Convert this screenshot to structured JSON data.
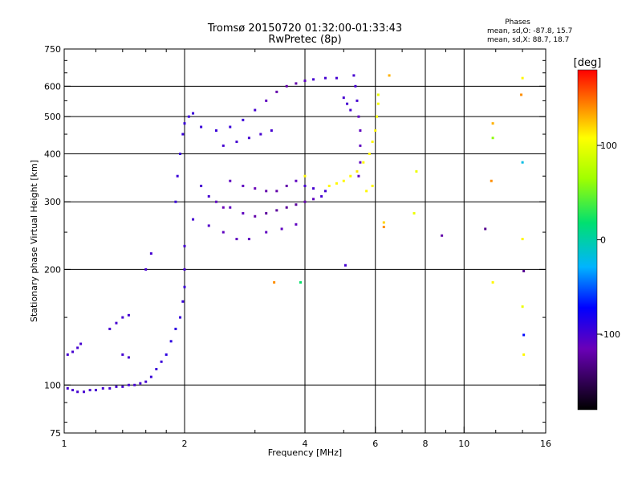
{
  "chart_data": {
    "type": "scatter",
    "title": "Tromsø 20150720 01:32:00-01:33:43",
    "subtitle": "RwPretec (8p)",
    "xlabel": "Frequency [MHz]",
    "ylabel": "Stationary phase Virtual Height [km]",
    "x_scale": "log",
    "y_scale": "log",
    "xlim": [
      1,
      16
    ],
    "ylim": [
      75,
      750
    ],
    "x_ticks": [
      1,
      2,
      4,
      6,
      8,
      10,
      16
    ],
    "y_ticks": [
      75,
      100,
      200,
      300,
      400,
      500,
      600,
      750
    ],
    "grid": true,
    "legend": {
      "title": "Phases",
      "entries": [
        "mean, sd,O:  -87.8, 15.7",
        "mean, sd,X:  88.7, 18.7"
      ]
    },
    "colorbar": {
      "label": "[deg]",
      "range": [
        -180,
        180
      ],
      "ticks": [
        100,
        0,
        -100
      ]
    },
    "series": [
      {
        "values": [
          [
            1.02,
            98,
            -100
          ],
          [
            1.05,
            97,
            -100
          ],
          [
            1.08,
            96,
            -100
          ],
          [
            1.12,
            96,
            -100
          ],
          [
            1.16,
            97,
            -100
          ],
          [
            1.2,
            97,
            -100
          ],
          [
            1.25,
            98,
            -100
          ],
          [
            1.3,
            98,
            -100
          ],
          [
            1.35,
            99,
            -100
          ],
          [
            1.4,
            99,
            -100
          ],
          [
            1.45,
            100,
            -100
          ],
          [
            1.5,
            100,
            -100
          ],
          [
            1.55,
            101,
            -100
          ],
          [
            1.6,
            102,
            -100
          ],
          [
            1.65,
            105,
            -95
          ],
          [
            1.7,
            110,
            -95
          ],
          [
            1.75,
            115,
            -95
          ],
          [
            1.8,
            120,
            -90
          ],
          [
            1.85,
            130,
            -90
          ],
          [
            1.9,
            140,
            -90
          ],
          [
            1.95,
            150,
            -95
          ],
          [
            1.98,
            165,
            -95
          ],
          [
            2.0,
            180,
            -95
          ],
          [
            2.0,
            200,
            -100
          ],
          [
            2.0,
            230,
            -100
          ],
          [
            1.02,
            120,
            -100
          ],
          [
            1.05,
            122,
            -100
          ],
          [
            1.08,
            125,
            -100
          ],
          [
            1.1,
            128,
            -100
          ],
          [
            1.4,
            120,
            -100
          ],
          [
            1.45,
            118,
            -100
          ],
          [
            1.3,
            140,
            -100
          ],
          [
            1.35,
            145,
            -100
          ],
          [
            1.4,
            150,
            -100
          ],
          [
            1.45,
            152,
            -100
          ],
          [
            1.6,
            200,
            -100
          ],
          [
            1.65,
            220,
            -100
          ],
          [
            1.9,
            300,
            -95
          ],
          [
            1.92,
            350,
            -95
          ],
          [
            1.95,
            400,
            -95
          ],
          [
            1.98,
            450,
            -95
          ],
          [
            2.0,
            480,
            -95
          ],
          [
            2.05,
            500,
            -95
          ],
          [
            2.1,
            510,
            -95
          ],
          [
            2.2,
            470,
            -95
          ],
          [
            2.4,
            460,
            -95
          ],
          [
            2.6,
            470,
            -95
          ],
          [
            2.8,
            490,
            -95
          ],
          [
            3.0,
            520,
            -100
          ],
          [
            3.2,
            550,
            -110
          ],
          [
            3.4,
            580,
            -120
          ],
          [
            3.6,
            600,
            -120
          ],
          [
            3.8,
            610,
            -120
          ],
          [
            4.0,
            620,
            -110
          ],
          [
            4.2,
            625,
            -100
          ],
          [
            4.5,
            630,
            -100
          ],
          [
            4.8,
            630,
            -100
          ],
          [
            2.5,
            420,
            -100
          ],
          [
            2.7,
            430,
            -100
          ],
          [
            2.9,
            440,
            -100
          ],
          [
            3.1,
            450,
            -100
          ],
          [
            3.3,
            460,
            -100
          ],
          [
            2.6,
            290,
            -110
          ],
          [
            2.8,
            280,
            -110
          ],
          [
            3.0,
            275,
            -120
          ],
          [
            3.2,
            280,
            -125
          ],
          [
            3.4,
            285,
            -125
          ],
          [
            3.6,
            290,
            -125
          ],
          [
            3.8,
            295,
            -125
          ],
          [
            4.0,
            300,
            -120
          ],
          [
            4.2,
            305,
            -110
          ],
          [
            4.4,
            310,
            -100
          ],
          [
            2.6,
            340,
            -110
          ],
          [
            2.8,
            330,
            -110
          ],
          [
            3.0,
            325,
            -115
          ],
          [
            3.2,
            320,
            -120
          ],
          [
            3.4,
            320,
            -120
          ],
          [
            3.6,
            330,
            -120
          ],
          [
            3.8,
            340,
            -110
          ],
          [
            4.0,
            330,
            -100
          ],
          [
            4.2,
            325,
            -100
          ],
          [
            4.5,
            320,
            -100
          ],
          [
            2.2,
            330,
            -100
          ],
          [
            2.3,
            310,
            -100
          ],
          [
            2.4,
            300,
            -110
          ],
          [
            2.5,
            290,
            -115
          ],
          [
            2.1,
            270,
            -100
          ],
          [
            2.3,
            260,
            -105
          ],
          [
            2.5,
            250,
            -110
          ],
          [
            2.7,
            240,
            -110
          ],
          [
            2.9,
            240,
            -110
          ],
          [
            3.2,
            250,
            -110
          ],
          [
            3.5,
            255,
            -110
          ],
          [
            3.8,
            262,
            -110
          ],
          [
            5.3,
            640,
            -100
          ],
          [
            5.35,
            600,
            -100
          ],
          [
            5.4,
            550,
            -100
          ],
          [
            5.45,
            500,
            -110
          ],
          [
            5.5,
            460,
            -110
          ],
          [
            5.5,
            420,
            -110
          ],
          [
            5.5,
            380,
            -110
          ],
          [
            5.45,
            350,
            -110
          ],
          [
            5.0,
            560,
            -100
          ],
          [
            5.1,
            540,
            -100
          ],
          [
            5.2,
            520,
            -100
          ]
        ]
      },
      {
        "values": [
          [
            4.6,
            330,
            110
          ],
          [
            4.8,
            335,
            110
          ],
          [
            5.0,
            340,
            110
          ],
          [
            5.2,
            350,
            110
          ],
          [
            5.4,
            360,
            115
          ],
          [
            5.6,
            380,
            110
          ],
          [
            5.8,
            400,
            110
          ],
          [
            5.9,
            430,
            110
          ],
          [
            6.0,
            460,
            110
          ],
          [
            6.05,
            500,
            105
          ],
          [
            6.1,
            540,
            105
          ],
          [
            6.1,
            570,
            100
          ],
          [
            5.7,
            320,
            110
          ],
          [
            5.9,
            330,
            110
          ],
          [
            6.3,
            265,
            120
          ],
          [
            6.3,
            258,
            140
          ],
          [
            7.6,
            360,
            100
          ],
          [
            7.5,
            280,
            100
          ],
          [
            3.35,
            185,
            140
          ],
          [
            5.05,
            205,
            -100
          ],
          [
            4.0,
            350,
            110
          ],
          [
            6.5,
            640,
            130
          ],
          [
            11.8,
            480,
            130
          ],
          [
            11.8,
            440,
            60
          ],
          [
            11.7,
            340,
            140
          ],
          [
            11.8,
            185,
            110
          ],
          [
            14.0,
            630,
            110
          ],
          [
            13.9,
            570,
            140
          ],
          [
            14.0,
            380,
            -20
          ],
          [
            14.0,
            240,
            110
          ],
          [
            14.1,
            198,
            -130
          ],
          [
            14.0,
            160,
            100
          ],
          [
            14.1,
            135,
            -70
          ],
          [
            14.1,
            120,
            110
          ],
          [
            8.8,
            245,
            -120
          ],
          [
            11.3,
            255,
            -130
          ],
          [
            3.9,
            185,
            20
          ]
        ]
      }
    ]
  }
}
